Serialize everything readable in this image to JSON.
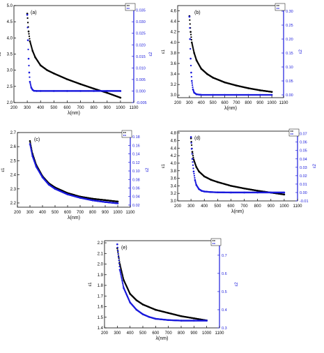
{
  "chart_data": [
    {
      "type": "scatter",
      "panel_label": "(a)",
      "xlabel": "λ(nm)",
      "ylabel_left": "ε1",
      "ylabel_right": "ε2",
      "x_ticks": [
        200,
        300,
        400,
        500,
        600,
        700,
        800,
        900,
        1000,
        1100
      ],
      "y_left_ticks": [
        2.0,
        2.5,
        3.0,
        3.5,
        4.0,
        4.5,
        5.0
      ],
      "y_right_ticks": [
        -0.005,
        0.0,
        0.005,
        0.01,
        0.015,
        0.02,
        0.025,
        0.03,
        0.035
      ],
      "ylim_left": [
        2.0,
        5.0
      ],
      "ylim_right": [
        -0.005,
        0.037
      ],
      "legend": "top-right",
      "series": [
        {
          "axis": "left",
          "color": "#000000",
          "x": [
            300,
            310,
            320,
            340,
            360,
            400,
            450,
            500,
            600,
            700,
            800,
            900,
            1000
          ],
          "y": [
            4.75,
            4.2,
            3.9,
            3.6,
            3.4,
            3.15,
            3.0,
            2.9,
            2.72,
            2.57,
            2.43,
            2.3,
            2.15
          ]
        },
        {
          "axis": "right",
          "color": "#1a1adc",
          "x": [
            300,
            305,
            310,
            315,
            320,
            330,
            340,
            350,
            370,
            400,
            500,
            600,
            700,
            800,
            900,
            1000
          ],
          "y": [
            0.033,
            0.022,
            0.014,
            0.008,
            0.004,
            0.0015,
            0.0005,
            0.0001,
            0.0,
            0.0,
            0.0,
            0.0,
            0.0,
            0.0,
            0.0,
            0.0
          ]
        }
      ]
    },
    {
      "type": "scatter",
      "panel_label": "(b)",
      "xlabel": "λ(nm)",
      "ylabel_left": "ε1",
      "ylabel_right": "ε2",
      "x_ticks": [
        200,
        300,
        400,
        500,
        600,
        700,
        800,
        900,
        1000,
        1100
      ],
      "y_left_ticks": [
        3.0,
        3.2,
        3.4,
        3.6,
        3.8,
        4.0,
        4.2,
        4.4,
        4.6
      ],
      "y_right_ticks": [
        0.0,
        0.05,
        0.1,
        0.15,
        0.2,
        0.25,
        0.3
      ],
      "ylim_left": [
        2.95,
        4.7
      ],
      "ylim_right": [
        -0.01,
        0.32
      ],
      "legend": "top-right",
      "series": [
        {
          "axis": "left",
          "color": "#000000",
          "x": [
            300,
            310,
            320,
            340,
            360,
            400,
            450,
            500,
            600,
            700,
            800,
            900,
            1000
          ],
          "y": [
            4.5,
            4.2,
            4.0,
            3.8,
            3.66,
            3.5,
            3.4,
            3.33,
            3.24,
            3.18,
            3.13,
            3.09,
            3.06
          ]
        },
        {
          "axis": "right",
          "color": "#1a1adc",
          "x": [
            300,
            305,
            310,
            315,
            320,
            330,
            340,
            360,
            400,
            500,
            600,
            700,
            800,
            900,
            1000
          ],
          "y": [
            0.28,
            0.2,
            0.13,
            0.08,
            0.05,
            0.02,
            0.008,
            0.002,
            0.0,
            0.0,
            0.0,
            0.0,
            0.0,
            0.0,
            0.0
          ]
        }
      ]
    },
    {
      "type": "scatter",
      "panel_label": "(c)",
      "xlabel": "λ(nm)",
      "ylabel_left": "ε1",
      "ylabel_right": "ε2",
      "x_ticks": [
        200,
        300,
        400,
        500,
        600,
        700,
        800,
        900,
        1000,
        1100
      ],
      "y_left_ticks": [
        2.2,
        2.3,
        2.4,
        2.5,
        2.6,
        2.7
      ],
      "y_right_ticks": [
        0.02,
        0.04,
        0.06,
        0.08,
        0.1,
        0.12,
        0.14,
        0.16,
        0.18
      ],
      "ylim_left": [
        2.17,
        2.7
      ],
      "ylim_right": [
        0.015,
        0.19
      ],
      "legend": "top-right",
      "series": [
        {
          "axis": "left",
          "color": "#000000",
          "x": [
            300,
            320,
            350,
            400,
            450,
            500,
            600,
            700,
            800,
            900,
            1000
          ],
          "y": [
            2.64,
            2.55,
            2.47,
            2.39,
            2.34,
            2.31,
            2.27,
            2.245,
            2.23,
            2.22,
            2.21
          ]
        },
        {
          "axis": "right",
          "color": "#1a1adc",
          "x": [
            300,
            320,
            350,
            400,
            450,
            500,
            600,
            700,
            800,
            900,
            1000
          ],
          "y": [
            0.163,
            0.135,
            0.11,
            0.085,
            0.068,
            0.058,
            0.045,
            0.037,
            0.031,
            0.027,
            0.024
          ]
        }
      ]
    },
    {
      "type": "scatter",
      "panel_label": "(d)",
      "xlabel": "λ(nm)",
      "ylabel_left": "ε1",
      "ylabel_right": "ε2",
      "x_ticks": [
        200,
        300,
        400,
        500,
        600,
        700,
        800,
        900,
        1000,
        1100
      ],
      "y_left_ticks": [
        3.0,
        3.2,
        3.4,
        3.6,
        3.8,
        4.0,
        4.2,
        4.4,
        4.6,
        4.8
      ],
      "y_right_ticks": [
        -0.01,
        0.0,
        0.01,
        0.02,
        0.03,
        0.04,
        0.05,
        0.06,
        0.07
      ],
      "ylim_left": [
        3.0,
        4.85
      ],
      "ylim_right": [
        -0.01,
        0.073
      ],
      "legend": "top-right",
      "series": [
        {
          "axis": "left",
          "color": "#000000",
          "x": [
            300,
            310,
            320,
            340,
            360,
            400,
            450,
            500,
            600,
            700,
            800,
            900,
            1000
          ],
          "y": [
            4.66,
            4.3,
            4.1,
            3.9,
            3.78,
            3.65,
            3.56,
            3.5,
            3.4,
            3.33,
            3.27,
            3.22,
            3.17
          ]
        },
        {
          "axis": "right",
          "color": "#1a1adc",
          "x": [
            300,
            305,
            310,
            320,
            330,
            340,
            360,
            380,
            400,
            450,
            500,
            600,
            700,
            800,
            900,
            1000
          ],
          "y": [
            0.066,
            0.052,
            0.04,
            0.025,
            0.015,
            0.009,
            0.004,
            0.002,
            0.0012,
            0.0005,
            0.0002,
            0.0,
            0.0,
            0.0,
            0.0,
            0.0
          ]
        }
      ]
    },
    {
      "type": "scatter",
      "panel_label": "(e)",
      "xlabel": "λ(nm)",
      "ylabel_left": "ε1",
      "ylabel_right": "ε2",
      "x_ticks": [
        200,
        300,
        400,
        500,
        600,
        700,
        800,
        900,
        1000,
        1100
      ],
      "y_left_ticks": [
        1.4,
        1.5,
        1.6,
        1.7,
        1.8,
        1.9,
        2.0,
        2.1,
        2.2
      ],
      "y_right_ticks": [
        0.3,
        0.4,
        0.5,
        0.6,
        0.7
      ],
      "ylim_left": [
        1.4,
        2.22
      ],
      "ylim_right": [
        0.3,
        0.78
      ],
      "legend": "top-right",
      "series": [
        {
          "axis": "left",
          "color": "#000000",
          "x": [
            300,
            320,
            350,
            400,
            450,
            500,
            600,
            700,
            800,
            900,
            1000
          ],
          "y": [
            2.15,
            2.0,
            1.85,
            1.72,
            1.66,
            1.62,
            1.57,
            1.54,
            1.51,
            1.49,
            1.47
          ]
        },
        {
          "axis": "right",
          "color": "#1a1adc",
          "x": [
            300,
            320,
            350,
            400,
            450,
            500,
            550,
            600,
            700,
            800,
            900,
            1000
          ],
          "y": [
            0.76,
            0.62,
            0.52,
            0.44,
            0.4,
            0.375,
            0.36,
            0.35,
            0.343,
            0.34,
            0.34,
            0.34
          ]
        }
      ]
    }
  ]
}
